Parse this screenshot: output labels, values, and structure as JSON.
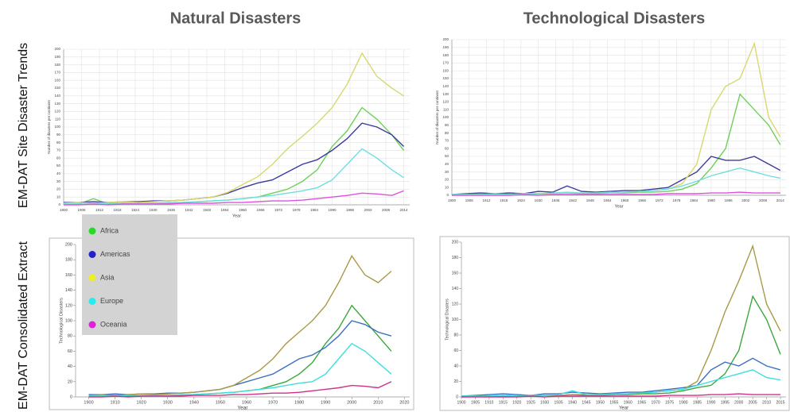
{
  "column_titles": [
    "Natural Disasters",
    "Technological Disasters"
  ],
  "row_labels": [
    "EM-DAT Site Disaster Trends",
    "EM-DAT Consolidated Extract"
  ],
  "legend": {
    "markers": [
      "#22dd22",
      "#2222cc",
      "#eeee22",
      "#22eeee",
      "#dd22dd"
    ]
  },
  "chart_data": [
    {
      "type": "line",
      "x_label": "Year",
      "y_label": "Number of disasters per continent",
      "grid": true,
      "x": [
        1900,
        1905,
        1910,
        1915,
        1920,
        1925,
        1930,
        1935,
        1940,
        1945,
        1950,
        1955,
        1960,
        1965,
        1970,
        1975,
        1980,
        1985,
        1990,
        1995,
        2000,
        2005,
        2010,
        2014
      ],
      "xlim": [
        1900,
        2016
      ],
      "xticks": [
        1900,
        1906,
        1912,
        1918,
        1924,
        1930,
        1936,
        1942,
        1948,
        1954,
        1960,
        1966,
        1972,
        1978,
        1984,
        1990,
        1996,
        2002,
        2008,
        2014
      ],
      "ylim": [
        0,
        200
      ],
      "yticks": [
        0,
        10,
        20,
        30,
        40,
        50,
        60,
        70,
        80,
        90,
        100,
        110,
        120,
        130,
        140,
        150,
        160,
        170,
        180,
        190,
        200
      ],
      "series": [
        {
          "name": "Africa",
          "color": "#6fcf5a",
          "values": [
            1,
            1,
            8,
            1,
            2,
            2,
            2,
            2,
            3,
            4,
            5,
            6,
            8,
            10,
            15,
            20,
            30,
            45,
            75,
            95,
            125,
            110,
            90,
            70
          ]
        },
        {
          "name": "Americas",
          "color": "#3a3aa0",
          "values": [
            3,
            3,
            4,
            3,
            4,
            4,
            5,
            5,
            6,
            8,
            10,
            15,
            22,
            28,
            32,
            42,
            52,
            58,
            70,
            85,
            105,
            100,
            90,
            75
          ]
        },
        {
          "name": "Asia",
          "color": "#d8d870",
          "values": [
            2,
            3,
            2,
            3,
            4,
            3,
            4,
            5,
            6,
            8,
            10,
            16,
            26,
            36,
            52,
            72,
            88,
            105,
            125,
            155,
            195,
            165,
            150,
            140
          ]
        },
        {
          "name": "Europe",
          "color": "#6fdede",
          "values": [
            1,
            1,
            1,
            2,
            2,
            2,
            2,
            3,
            3,
            4,
            5,
            6,
            8,
            10,
            12,
            15,
            18,
            22,
            32,
            52,
            72,
            60,
            45,
            35
          ]
        },
        {
          "name": "Oceania",
          "color": "#e050e0",
          "values": [
            0,
            0,
            1,
            0,
            1,
            1,
            1,
            1,
            2,
            2,
            2,
            3,
            3,
            4,
            5,
            5,
            6,
            8,
            10,
            12,
            15,
            14,
            12,
            18
          ]
        }
      ]
    },
    {
      "type": "line",
      "x_label": "Year",
      "y_label": "Number of disasters per continent",
      "grid": true,
      "x": [
        1900,
        1905,
        1910,
        1915,
        1920,
        1925,
        1930,
        1935,
        1940,
        1945,
        1950,
        1955,
        1960,
        1965,
        1970,
        1975,
        1980,
        1985,
        1990,
        1995,
        2000,
        2005,
        2010,
        2014
      ],
      "xlim": [
        1900,
        2016
      ],
      "xticks": [
        1900,
        1906,
        1912,
        1918,
        1924,
        1930,
        1936,
        1942,
        1948,
        1954,
        1960,
        1966,
        1972,
        1978,
        1984,
        1990,
        1996,
        2002,
        2008,
        2014
      ],
      "ylim": [
        0,
        200
      ],
      "yticks": [
        0,
        10,
        20,
        30,
        40,
        50,
        60,
        70,
        80,
        90,
        100,
        110,
        120,
        130,
        140,
        150,
        160,
        170,
        180,
        190,
        200
      ],
      "series": [
        {
          "name": "Africa",
          "color": "#6fcf5a",
          "values": [
            0,
            1,
            1,
            2,
            1,
            1,
            2,
            2,
            3,
            2,
            2,
            3,
            3,
            4,
            4,
            5,
            8,
            15,
            35,
            60,
            130,
            110,
            90,
            65
          ]
        },
        {
          "name": "Americas",
          "color": "#3a3aa0",
          "values": [
            1,
            2,
            3,
            2,
            3,
            2,
            5,
            4,
            12,
            5,
            4,
            5,
            6,
            6,
            8,
            10,
            20,
            30,
            50,
            45,
            45,
            50,
            40,
            32
          ]
        },
        {
          "name": "Asia",
          "color": "#d8d870",
          "values": [
            1,
            1,
            1,
            1,
            1,
            2,
            2,
            2,
            3,
            3,
            3,
            3,
            4,
            5,
            6,
            8,
            15,
            40,
            110,
            140,
            150,
            195,
            100,
            75
          ]
        },
        {
          "name": "Europe",
          "color": "#6fdede",
          "values": [
            1,
            1,
            1,
            2,
            1,
            2,
            2,
            3,
            4,
            3,
            3,
            4,
            4,
            5,
            6,
            8,
            12,
            18,
            25,
            30,
            35,
            30,
            25,
            22
          ]
        },
        {
          "name": "Oceania",
          "color": "#e050e0",
          "values": [
            0,
            0,
            0,
            0,
            0,
            1,
            0,
            1,
            1,
            1,
            1,
            1,
            1,
            1,
            1,
            2,
            2,
            2,
            3,
            3,
            4,
            3,
            3,
            3
          ]
        }
      ]
    },
    {
      "type": "line",
      "x_label": "Year",
      "y_label": "Technological Disasters",
      "grid": false,
      "x": [
        1900,
        1905,
        1910,
        1915,
        1920,
        1925,
        1930,
        1935,
        1940,
        1945,
        1950,
        1955,
        1960,
        1965,
        1970,
        1975,
        1980,
        1985,
        1990,
        1995,
        2000,
        2005,
        2010,
        2015
      ],
      "xlim": [
        1895,
        2022
      ],
      "xticks": [
        1900,
        1910,
        1920,
        1930,
        1940,
        1950,
        1960,
        1970,
        1980,
        1990,
        2000,
        2010,
        2020
      ],
      "ylim": [
        0,
        200
      ],
      "yticks": [
        0,
        20,
        40,
        60,
        80,
        100,
        120,
        140,
        160,
        180,
        200
      ],
      "series": [
        {
          "name": "Africa",
          "color": "#3ca63c",
          "values": [
            1,
            1,
            1,
            1,
            2,
            2,
            2,
            2,
            3,
            4,
            5,
            6,
            8,
            10,
            15,
            20,
            30,
            45,
            70,
            90,
            120,
            100,
            80,
            60
          ]
        },
        {
          "name": "Americas",
          "color": "#3a6fc4",
          "values": [
            3,
            3,
            4,
            3,
            4,
            4,
            5,
            5,
            6,
            8,
            10,
            15,
            20,
            25,
            30,
            40,
            50,
            55,
            65,
            80,
            100,
            95,
            85,
            80
          ]
        },
        {
          "name": "Asia",
          "color": "#a89a4a",
          "values": [
            2,
            3,
            2,
            3,
            4,
            3,
            4,
            5,
            6,
            8,
            10,
            15,
            25,
            35,
            50,
            70,
            85,
            100,
            120,
            150,
            185,
            160,
            150,
            165
          ]
        },
        {
          "name": "Europe",
          "color": "#3fdede",
          "values": [
            1,
            1,
            1,
            2,
            2,
            2,
            2,
            3,
            3,
            4,
            5,
            6,
            8,
            10,
            12,
            15,
            18,
            20,
            30,
            50,
            70,
            60,
            45,
            30
          ]
        },
        {
          "name": "Oceania",
          "color": "#d0308a",
          "values": [
            0,
            0,
            1,
            0,
            1,
            1,
            1,
            1,
            2,
            2,
            2,
            3,
            3,
            4,
            5,
            5,
            6,
            8,
            10,
            12,
            15,
            14,
            12,
            20
          ]
        }
      ]
    },
    {
      "type": "line",
      "x_label": "Year",
      "y_label": "Technological Disasters",
      "grid": false,
      "x": [
        1900,
        1905,
        1910,
        1915,
        1920,
        1925,
        1930,
        1935,
        1940,
        1945,
        1950,
        1955,
        1960,
        1965,
        1970,
        1975,
        1980,
        1985,
        1990,
        1995,
        2000,
        2005,
        2010,
        2015
      ],
      "xlim": [
        1900,
        2017
      ],
      "xticks": [
        1900,
        1905,
        1910,
        1915,
        1920,
        1925,
        1930,
        1935,
        1940,
        1945,
        1950,
        1955,
        1960,
        1965,
        1970,
        1975,
        1980,
        1985,
        1990,
        1995,
        2000,
        2005,
        2010,
        2015
      ],
      "ylim": [
        0,
        200
      ],
      "yticks": [
        0,
        20,
        40,
        60,
        80,
        100,
        120,
        140,
        160,
        180,
        200
      ],
      "series": [
        {
          "name": "Africa",
          "color": "#3ca63c",
          "values": [
            0,
            1,
            1,
            2,
            1,
            1,
            2,
            2,
            3,
            2,
            2,
            3,
            3,
            4,
            4,
            5,
            8,
            12,
            15,
            30,
            60,
            130,
            100,
            55
          ]
        },
        {
          "name": "Americas",
          "color": "#3a6fc4",
          "values": [
            1,
            2,
            3,
            4,
            3,
            2,
            4,
            4,
            6,
            5,
            4,
            5,
            6,
            6,
            8,
            10,
            12,
            15,
            35,
            45,
            40,
            50,
            40,
            35
          ]
        },
        {
          "name": "Asia",
          "color": "#a89a4a",
          "values": [
            1,
            1,
            1,
            1,
            1,
            2,
            2,
            2,
            3,
            3,
            3,
            3,
            4,
            5,
            6,
            8,
            10,
            20,
            60,
            110,
            150,
            195,
            120,
            85
          ]
        },
        {
          "name": "Europe",
          "color": "#3fdede",
          "values": [
            1,
            1,
            1,
            2,
            1,
            2,
            2,
            3,
            8,
            3,
            3,
            4,
            4,
            5,
            6,
            8,
            10,
            15,
            20,
            25,
            30,
            35,
            25,
            22
          ]
        },
        {
          "name": "Oceania",
          "color": "#d0308a",
          "values": [
            0,
            0,
            0,
            0,
            0,
            1,
            0,
            1,
            1,
            1,
            1,
            1,
            1,
            1,
            1,
            2,
            2,
            2,
            3,
            3,
            4,
            3,
            3,
            3
          ]
        }
      ]
    }
  ]
}
